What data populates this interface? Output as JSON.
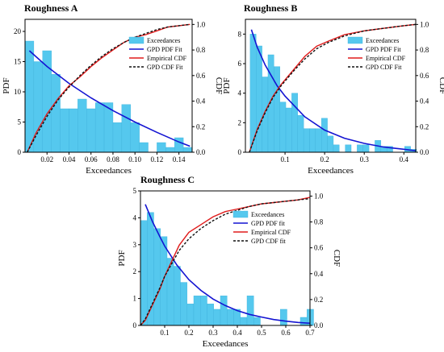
{
  "colors": {
    "bars": "#55c8ee",
    "bar_edge": "#3fb2dc",
    "pdf": "#1414d2",
    "ecdf": "#e01b1b",
    "cdf_fit": "#111111"
  },
  "chart_data": [
    {
      "type": "bar",
      "title": "Roughness A",
      "xlabel": "Exceedances",
      "ylabel": "PDF",
      "y2label": "CDF",
      "xlim": [
        0.0,
        0.152
      ],
      "ylim": [
        0,
        22
      ],
      "y2lim": [
        0,
        1.04
      ],
      "xticks": [
        0.02,
        0.04,
        0.06,
        0.08,
        0.1,
        0.12,
        0.14
      ],
      "xticklabels": [
        "0.02",
        "0.04",
        "0.06",
        "0.08",
        "0.10",
        "0.12",
        "0.14"
      ],
      "yticks": [
        0,
        5,
        10,
        15,
        20
      ],
      "yticklabels": [
        "0",
        "5",
        "10",
        "15",
        "20"
      ],
      "y2ticks": [
        0,
        0.2,
        0.4,
        0.6,
        0.8,
        1.0
      ],
      "y2ticklabels": [
        "0.0",
        "0.2",
        "0.4",
        "0.6",
        "0.8",
        "1.0"
      ],
      "bin_edges": [
        0.0,
        0.008,
        0.016,
        0.024,
        0.032,
        0.04,
        0.048,
        0.056,
        0.064,
        0.072,
        0.08,
        0.088,
        0.096,
        0.104,
        0.112,
        0.12,
        0.128,
        0.136,
        0.144,
        0.152
      ],
      "values": [
        18.4,
        15.0,
        16.8,
        12.9,
        7.2,
        7.2,
        8.8,
        7.2,
        8.2,
        8.2,
        4.9,
        7.9,
        4.9,
        1.6,
        0.0,
        1.6,
        0.8,
        2.4,
        0.8
      ],
      "pdf_fit": {
        "x": [
          0.004,
          0.02,
          0.04,
          0.06,
          0.08,
          0.1,
          0.12,
          0.14,
          0.15
        ],
        "y": [
          16.8,
          14.2,
          11.4,
          9.0,
          6.9,
          5.0,
          3.3,
          1.7,
          1.0
        ]
      },
      "ecdf": {
        "x": [
          0.002,
          0.01,
          0.02,
          0.03,
          0.04,
          0.05,
          0.06,
          0.07,
          0.08,
          0.09,
          0.1,
          0.11,
          0.12,
          0.13,
          0.14,
          0.15
        ],
        "y": [
          0.0,
          0.15,
          0.3,
          0.42,
          0.52,
          0.59,
          0.67,
          0.74,
          0.8,
          0.86,
          0.9,
          0.92,
          0.95,
          0.98,
          0.99,
          1.0
        ]
      },
      "cdf_fit": {
        "x": [
          0.002,
          0.01,
          0.02,
          0.03,
          0.04,
          0.05,
          0.06,
          0.07,
          0.08,
          0.09,
          0.1,
          0.11,
          0.12,
          0.13,
          0.14,
          0.15
        ],
        "y": [
          0.0,
          0.13,
          0.28,
          0.41,
          0.51,
          0.6,
          0.68,
          0.75,
          0.81,
          0.86,
          0.9,
          0.93,
          0.96,
          0.98,
          0.99,
          1.0
        ]
      },
      "legend": [
        "Exceedances",
        "GPD PDF Fit",
        "Empirical CDF",
        "GPD CDF Fit"
      ],
      "legend_position": "right-middle"
    },
    {
      "type": "bar",
      "title": "Roughness B",
      "xlabel": "Exceedances",
      "ylabel": "PDF",
      "y2label": "CDF",
      "xlim": [
        0.0,
        0.43
      ],
      "ylim": [
        0,
        9
      ],
      "y2lim": [
        0,
        1.04
      ],
      "xticks": [
        0.1,
        0.2,
        0.3,
        0.4
      ],
      "xticklabels": [
        "0.1",
        "0.2",
        "0.3",
        "0.4"
      ],
      "yticks": [
        0,
        2,
        4,
        6,
        8
      ],
      "yticklabels": [
        "0",
        "2",
        "4",
        "6",
        "8"
      ],
      "y2ticks": [
        0,
        0.2,
        0.4,
        0.6,
        0.8,
        1.0
      ],
      "y2ticklabels": [
        "0.0",
        "0.2",
        "0.4",
        "0.6",
        "0.8",
        "1.0"
      ],
      "bin_edges": [
        0.012,
        0.027,
        0.042,
        0.057,
        0.072,
        0.087,
        0.102,
        0.117,
        0.132,
        0.147,
        0.162,
        0.177,
        0.192,
        0.207,
        0.222,
        0.237,
        0.252,
        0.267,
        0.282,
        0.297,
        0.312,
        0.327,
        0.342,
        0.357,
        0.372,
        0.387,
        0.402,
        0.417,
        0.432
      ],
      "values": [
        8.0,
        7.2,
        5.1,
        6.6,
        5.8,
        3.4,
        3.0,
        4.0,
        2.5,
        1.6,
        1.6,
        1.6,
        2.3,
        1.1,
        0.5,
        0.0,
        0.5,
        0.0,
        0.5,
        0.5,
        0.0,
        0.8,
        0.4,
        0.4,
        0.0,
        0.0,
        0.4,
        0.2
      ],
      "pdf_fit": {
        "x": [
          0.015,
          0.03,
          0.05,
          0.08,
          0.1,
          0.15,
          0.2,
          0.25,
          0.3,
          0.35,
          0.4,
          0.43
        ],
        "y": [
          8.3,
          7.1,
          5.9,
          4.5,
          3.8,
          2.4,
          1.5,
          0.95,
          0.6,
          0.35,
          0.2,
          0.1
        ]
      },
      "ecdf": {
        "x": [
          0.01,
          0.03,
          0.05,
          0.07,
          0.09,
          0.12,
          0.15,
          0.18,
          0.21,
          0.25,
          0.3,
          0.35,
          0.4,
          0.43
        ],
        "y": [
          0.0,
          0.18,
          0.32,
          0.44,
          0.53,
          0.64,
          0.75,
          0.83,
          0.87,
          0.92,
          0.95,
          0.97,
          0.99,
          1.0
        ]
      },
      "cdf_fit": {
        "x": [
          0.01,
          0.03,
          0.05,
          0.07,
          0.09,
          0.12,
          0.15,
          0.18,
          0.21,
          0.25,
          0.3,
          0.35,
          0.4,
          0.43
        ],
        "y": [
          0.0,
          0.17,
          0.31,
          0.43,
          0.52,
          0.63,
          0.73,
          0.81,
          0.86,
          0.91,
          0.95,
          0.97,
          0.99,
          1.0
        ]
      },
      "legend": [
        "Exceedances",
        "GPD PDF Fit",
        "Empirical CDF",
        "GPD CDF Fit"
      ],
      "legend_position": "right-middle"
    },
    {
      "type": "bar",
      "title": "Roughness C",
      "xlabel": "Exceedances",
      "ylabel": "PDF",
      "y2label": "CDF",
      "xlim": [
        0.0,
        0.7
      ],
      "ylim": [
        0,
        5
      ],
      "y2lim": [
        0,
        1.04
      ],
      "xticks": [
        0.1,
        0.2,
        0.3,
        0.4,
        0.5,
        0.6,
        0.7
      ],
      "xticklabels": [
        "0.1",
        "0.2",
        "0.3",
        "0.4",
        "0.5",
        "0.6",
        "0.7"
      ],
      "yticks": [
        0,
        1,
        2,
        3,
        4,
        5
      ],
      "yticklabels": [
        "0",
        "1",
        "2",
        "3",
        "4",
        "5"
      ],
      "y2ticks": [
        0,
        0.2,
        0.4,
        0.6,
        0.8,
        1.0
      ],
      "y2ticklabels": [
        "0.0",
        "0.2",
        "0.4",
        "0.6",
        "0.8",
        "1.0"
      ],
      "bin_edges": [
        0.0,
        0.0275,
        0.055,
        0.0825,
        0.11,
        0.1375,
        0.165,
        0.1925,
        0.22,
        0.2475,
        0.275,
        0.3025,
        0.33,
        0.3575,
        0.385,
        0.4125,
        0.44,
        0.4675,
        0.495,
        0.5225,
        0.55,
        0.5775,
        0.605,
        0.6325,
        0.66,
        0.6875,
        0.715
      ],
      "values": [
        3.9,
        4.2,
        3.6,
        3.3,
        2.5,
        2.2,
        1.6,
        0.8,
        1.1,
        1.1,
        0.8,
        0.6,
        1.1,
        0.6,
        0.6,
        0.3,
        1.1,
        0.3,
        0.0,
        0.0,
        0.0,
        0.6,
        0.0,
        0.0,
        0.3,
        0.6
      ],
      "pdf_fit": {
        "x": [
          0.02,
          0.05,
          0.08,
          0.1,
          0.15,
          0.2,
          0.25,
          0.3,
          0.35,
          0.4,
          0.45,
          0.5,
          0.55,
          0.6,
          0.65,
          0.7
        ],
        "y": [
          4.5,
          3.85,
          3.3,
          2.95,
          2.25,
          1.7,
          1.3,
          0.98,
          0.74,
          0.55,
          0.41,
          0.31,
          0.22,
          0.16,
          0.11,
          0.08
        ]
      },
      "ecdf": {
        "x": [
          0.0,
          0.02,
          0.05,
          0.08,
          0.1,
          0.13,
          0.16,
          0.2,
          0.25,
          0.3,
          0.35,
          0.4,
          0.45,
          0.5,
          0.55,
          0.6,
          0.65,
          0.7
        ],
        "y": [
          0.0,
          0.04,
          0.16,
          0.28,
          0.38,
          0.5,
          0.62,
          0.72,
          0.78,
          0.84,
          0.88,
          0.9,
          0.92,
          0.94,
          0.95,
          0.96,
          0.97,
          0.99
        ]
      },
      "cdf_fit": {
        "x": [
          0.0,
          0.02,
          0.05,
          0.08,
          0.1,
          0.13,
          0.16,
          0.2,
          0.25,
          0.3,
          0.35,
          0.4,
          0.45,
          0.5,
          0.55,
          0.6,
          0.65,
          0.7
        ],
        "y": [
          0.0,
          0.05,
          0.17,
          0.29,
          0.38,
          0.48,
          0.58,
          0.67,
          0.75,
          0.81,
          0.86,
          0.89,
          0.92,
          0.94,
          0.95,
          0.96,
          0.97,
          0.98
        ]
      },
      "legend": [
        "Exceedances",
        "GPD PDF fit",
        "Empirical CDF",
        "GPD CDF fit"
      ],
      "legend_position": "right-top"
    }
  ]
}
